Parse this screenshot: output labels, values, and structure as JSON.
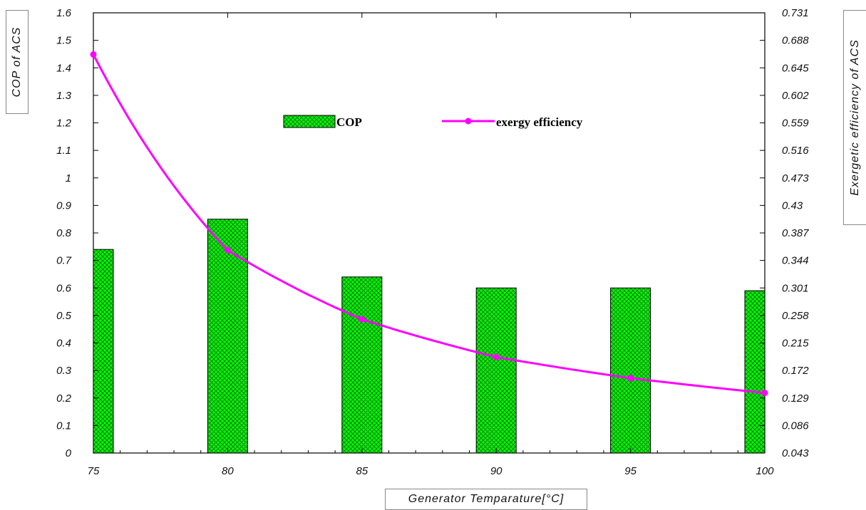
{
  "chart_data": {
    "type": "bar",
    "xlabel": "Generator Temparature[°C]",
    "ylabel": "COP of ACS",
    "y2label": "Exergetic efficiency of ACS",
    "xlim": [
      75,
      100
    ],
    "ylim": [
      0,
      1.6
    ],
    "y2lim": [
      0.043,
      0.731
    ],
    "x_ticks": [
      "75",
      "80",
      "85",
      "90",
      "95",
      "100"
    ],
    "y_ticks": [
      "0",
      "0.1",
      "0.2",
      "0.3",
      "0.4",
      "0.5",
      "0.6",
      "0.7",
      "0.8",
      "0.9",
      "1",
      "1.1",
      "1.2",
      "1.3",
      "1.4",
      "1.5",
      "1.6"
    ],
    "y2_ticks": [
      "0.043",
      "0.086",
      "0.129",
      "0.172",
      "0.215",
      "0.258",
      "0.301",
      "0.344",
      "0.387",
      "0.43",
      "0.473",
      "0.516",
      "0.559",
      "0.602",
      "0.645",
      "0.688",
      "0.731"
    ],
    "series": [
      {
        "name": "COP",
        "type": "bar",
        "axis": "left",
        "x": [
          75,
          80,
          85,
          90,
          95,
          100
        ],
        "values": [
          0.74,
          0.85,
          0.64,
          0.6,
          0.6,
          0.59
        ],
        "fill": "#00ff00",
        "hatch": "cross",
        "edge": "#000000"
      },
      {
        "name": "exergy efficiency",
        "type": "line",
        "axis": "right",
        "x": [
          75,
          80,
          85,
          90,
          95,
          100
        ],
        "values": [
          0.666,
          0.36,
          0.252,
          0.193,
          0.16,
          0.137
        ],
        "color": "#ff00ff"
      }
    ],
    "legend": "top-center",
    "grid": false
  }
}
